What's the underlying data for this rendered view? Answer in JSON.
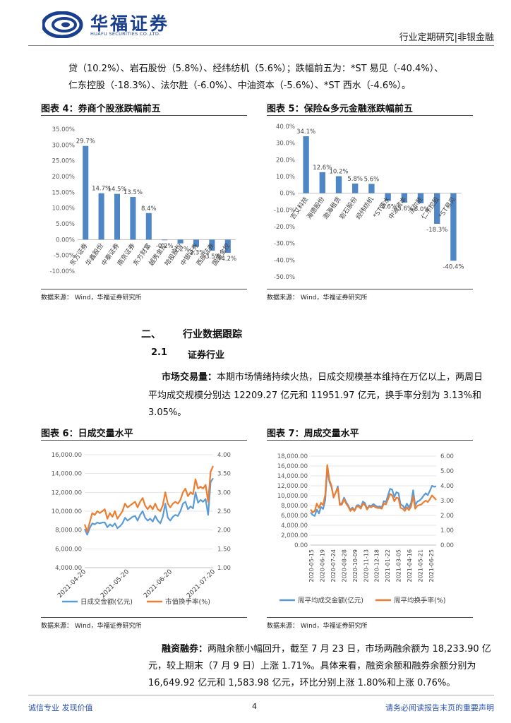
{
  "header": {
    "logo_cn": "华福证券",
    "logo_en": "HUAFU SECURITIES CO.,LTD.",
    "right": "行业定期研究|非银金融"
  },
  "intro": {
    "line1": "贷（10.2%）、岩石股份（5.8%）、经纬纺机（5.6%）；跌幅前五为：*ST 易见（-40.4%）、",
    "line2": "仁东控股（-18.3%）、法尔胜（-6.0%）、中油资本（-5.6%）、*ST 西水（-4.6%）。"
  },
  "fig4": {
    "title": "图表 4：券商个股涨跌幅前五",
    "source": "数据来源：  Wind，华福证券研究所"
  },
  "fig5": {
    "title": "图表 5：保险&多元金融涨跌幅前五",
    "source": "数据来源：  Wind，华福证券研究所"
  },
  "section2": {
    "num": "二、",
    "title": "行业数据跟踪"
  },
  "section21": {
    "num": "2.1",
    "title": "证券行业"
  },
  "market": {
    "label": "市场交易量：",
    "text1": "本期市场情绪持续火热，日成交规模基本维持在万亿以上，两周日",
    "text2": "平均成交规模分别达 12209.27 亿元和 11951.97 亿元，换手率分别为 3.13%和",
    "text3": "3.05%。"
  },
  "fig6": {
    "title": "图表 6：日成交量水平",
    "source": "数据来源：  Wind，华福证券研究所"
  },
  "fig7": {
    "title": "图表 7：周成交量水平",
    "source": "数据来源：  Wind，华福证券研究所"
  },
  "margin": {
    "label": "融资融券：",
    "text1": "两融余额小幅回升，截至 7 月 23 日，市场两融余额为 18,233.90 亿",
    "text2": "元，较上期末（7 月 9 日）上涨 1.71%。具体来看，融资余额和融券余额分别为",
    "text3": "16,649.92 亿元和 1,583.98 亿元，环比分别上涨 1.80%和上涨 0.76%。"
  },
  "footer": {
    "left": "诚信专业  发现价值",
    "page": "4",
    "right": "请务必阅读报告末页的重要声明"
  },
  "chart_data": [
    {
      "type": "bar",
      "categories": [
        "东方证券",
        "华鑫股份",
        "中泰证券",
        "南京证券",
        "东方财富",
        "越秀金控",
        "哈投股份",
        "中银证券",
        "西部证券",
        "国盛金控"
      ],
      "values": [
        29.7,
        14.7,
        14.5,
        13.5,
        8.4,
        -0.2,
        -1.2,
        -2.3,
        -3.5,
        -4.2
      ],
      "labels": [
        "29.7%",
        "14.7%",
        "14.5%",
        "13.5%",
        "8.4%",
        "-0.2%",
        "-1.2%",
        "-2.3%",
        "-3.5%",
        "-4.2%"
      ],
      "yticks": [
        "35.00%",
        "30.00%",
        "25.00%",
        "20.00%",
        "15.00%",
        "10.00%",
        "5.00%",
        "0.00%",
        "-5.00%",
        "-10.00%"
      ],
      "ylim": [
        -10,
        35
      ],
      "color": "#4e86c6"
    },
    {
      "type": "bar",
      "categories": [
        "吉艾科技",
        "海德股份",
        "渤海租赁",
        "岩石股份",
        "经纬纺机",
        "*ST西水",
        "中油资本",
        "法尔胜",
        "仁东控股",
        "*ST易见"
      ],
      "values": [
        34.1,
        12.6,
        10.2,
        5.8,
        5.6,
        -4.6,
        -5.6,
        -6.0,
        -18.3,
        -40.4
      ],
      "labels": [
        "34.1%",
        "12.6%",
        "10.2%",
        "5.8%",
        "5.6%",
        "-4.6%",
        "-5.6%",
        "-6.0%",
        "-18.3%",
        "-40.4%"
      ],
      "yticks": [
        "40.0%",
        "30.0%",
        "20.0%",
        "10.0%",
        "0.0%",
        "-10.0%",
        "-20.0%",
        "-30.0%",
        "-40.0%",
        "-50.0%"
      ],
      "ylim": [
        -50,
        40
      ],
      "color": "#4e86c6"
    },
    {
      "type": "line",
      "x_ticks": [
        "2021-04-20",
        "2021-05-20",
        "2021-06-20",
        "2021-07-20"
      ],
      "y_ticks": [
        "16,000.00",
        "14,000.00",
        "12,000.00",
        "10,000.00",
        "8,000.00",
        "6,000.00",
        "4,000.00"
      ],
      "y2_ticks": [
        "4.00",
        "3.50",
        "3.00",
        "2.50",
        "2.00",
        "1.50",
        "1.00"
      ],
      "ylim": [
        4000,
        16000
      ],
      "y2lim": [
        1.0,
        4.0
      ],
      "series": [
        {
          "name": "日成交金额(亿元)",
          "axis": "left",
          "color": "#5b9bd5",
          "values": [
            8100,
            7500,
            8200,
            8700,
            8600,
            8800,
            8700,
            8800,
            8800,
            8300,
            8600,
            8400,
            8700,
            8200,
            8400,
            8700,
            9300,
            9000,
            9200,
            9400,
            9500,
            9000,
            9600,
            10000,
            9300,
            9000,
            9200,
            8900,
            9500,
            9000,
            8700,
            9400,
            10800,
            9300,
            9000,
            9400,
            9600,
            9500,
            10000,
            10800,
            11000,
            10200,
            10500,
            10300,
            12000,
            10900,
            11200,
            11000,
            11300,
            9600,
            13100,
            13500
          ]
        },
        {
          "name": "市值换手率(%)",
          "axis": "right",
          "color": "#ed7d31",
          "values": [
            2.15,
            1.95,
            2.2,
            2.45,
            2.4,
            2.5,
            2.45,
            2.5,
            2.55,
            2.3,
            2.45,
            2.35,
            2.5,
            2.3,
            2.4,
            2.5,
            2.7,
            2.6,
            2.65,
            2.7,
            2.75,
            2.6,
            2.75,
            2.85,
            2.65,
            2.55,
            2.65,
            2.55,
            2.7,
            2.55,
            2.5,
            2.65,
            3.0,
            2.7,
            2.6,
            2.7,
            2.75,
            2.7,
            2.8,
            3.0,
            3.1,
            2.9,
            3.0,
            2.95,
            3.35,
            3.1,
            3.15,
            3.1,
            3.2,
            2.75,
            3.55,
            3.7
          ]
        }
      ]
    },
    {
      "type": "line",
      "x_ticks": [
        "2020-05-15",
        "2020-06-19",
        "2020-07-24",
        "2020-08-28",
        "2020-10-09",
        "2020-11-13",
        "2020-12-18",
        "2021-01-22",
        "2021-03-05",
        "2021-04-16",
        "2021-05-21",
        "2021-06-25"
      ],
      "y_ticks": [
        "18,000.00",
        "16,000.00",
        "14,000.00",
        "12,000.00",
        "10,000.00",
        "8,000.00",
        "6,000.00",
        "4,000.00",
        "2,000.00",
        "0.00"
      ],
      "y2_ticks": [
        "6.00",
        "5.00",
        "4.00",
        "3.00",
        "2.00",
        "1.00",
        "0.00"
      ],
      "ylim": [
        0,
        18000
      ],
      "y2lim": [
        0,
        6
      ],
      "series": [
        {
          "name": "周平均成交金额(亿元)",
          "axis": "left",
          "color": "#5b9bd5",
          "values": [
            6600,
            6100,
            5900,
            7200,
            6400,
            7700,
            7300,
            9100,
            15300,
            12800,
            11700,
            9700,
            10600,
            11900,
            8300,
            8500,
            9600,
            8700,
            8000,
            7100,
            7600,
            7000,
            8000,
            8100,
            7600,
            8800,
            8500,
            7300,
            8000,
            7900,
            8300,
            8000,
            7700,
            7800,
            7600,
            8900,
            8700,
            10100,
            11400,
            11200,
            9700,
            10700,
            10500,
            8200,
            8000,
            7400,
            8400,
            7600,
            8500,
            11100,
            8000,
            8800,
            9000,
            9400,
            10000,
            10500,
            10100,
            11000,
            12000,
            11800,
            11900
          ]
        },
        {
          "name": "周平均换手率(%)",
          "axis": "right",
          "color": "#ed7d31",
          "values": [
            2.4,
            2.2,
            2.3,
            2.8,
            2.5,
            2.85,
            2.7,
            3.4,
            5.4,
            4.4,
            4.0,
            3.2,
            3.55,
            3.85,
            2.7,
            2.75,
            3.1,
            2.8,
            2.6,
            2.3,
            2.45,
            2.3,
            2.6,
            2.6,
            2.45,
            2.8,
            2.7,
            2.4,
            2.6,
            2.55,
            2.65,
            2.55,
            2.5,
            2.5,
            2.45,
            2.8,
            2.75,
            3.1,
            3.45,
            3.35,
            2.95,
            3.2,
            3.15,
            2.5,
            2.45,
            2.3,
            2.55,
            2.35,
            2.6,
            3.3,
            2.45,
            2.65,
            2.7,
            2.75,
            2.9,
            3.0,
            2.9,
            3.1,
            3.35,
            3.2,
            3.05
          ]
        }
      ]
    }
  ]
}
